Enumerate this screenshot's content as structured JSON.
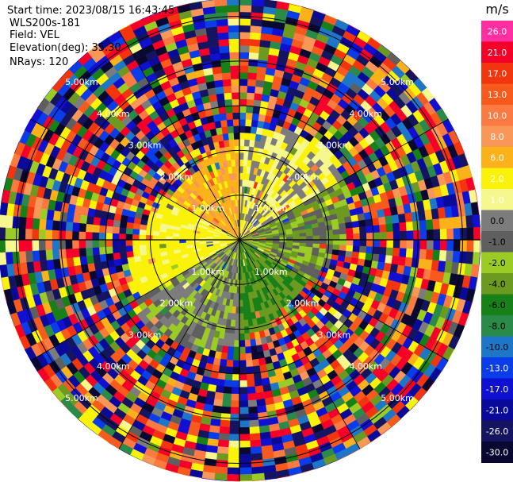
{
  "header": {
    "start_time": "Start time: 2023/08/15 16:43:45",
    "instrument": "WLS200s-181",
    "field": "Field: VEL",
    "elevation": "Elevation(deg): 35.30",
    "nrays": "NRays: 120"
  },
  "colorbar": {
    "unit": "m/s",
    "ticks": [
      "26.0",
      "21.0",
      "17.0",
      "13.0",
      "10.0",
      "8.0",
      "6.0",
      "2.0",
      "1.0",
      "0.0",
      "-1.0",
      "-2.0",
      "-4.0",
      "-6.0",
      "-8.0",
      "-10.0",
      "-13.0",
      "-17.0",
      "-21.0",
      "-26.0",
      "-30.0"
    ],
    "colors": [
      "#ff2fa2",
      "#f40028",
      "#f2350e",
      "#f75a1c",
      "#fb7a42",
      "#f89758",
      "#fbb21a",
      "#fbf20a",
      "#f6f78d",
      "#7c7c7c",
      "#5f5f5f",
      "#9bcc26",
      "#6c9a20",
      "#188018",
      "#2a8a4a",
      "#1d76c8",
      "#0a3de7",
      "#1010d2",
      "#0a0a9a",
      "#141460",
      "#080830"
    ]
  },
  "chart_data": {
    "type": "heatmap",
    "subtype": "ppi-polar",
    "field": "VEL",
    "units": "m/s",
    "nrays": 120,
    "range_rings_km": [
      1.0,
      2.0,
      3.0,
      4.0,
      5.0
    ],
    "range_ring_labels": [
      "1.00km",
      "2.00km",
      "3.00km",
      "4.00km",
      "5.00km"
    ],
    "max_range_km": 5.4,
    "vlim": [
      -30.0,
      26.0
    ],
    "spokes_deg": [
      0,
      30,
      60,
      90,
      120,
      150,
      180,
      210,
      240,
      270,
      300,
      330
    ],
    "inner_region_by_sector": [
      {
        "az": [
          0,
          60
        ],
        "value": 1.5
      },
      {
        "az": [
          60,
          120
        ],
        "value": -1.5
      },
      {
        "az": [
          120,
          180
        ],
        "value": -4.0
      },
      {
        "az": [
          180,
          240
        ],
        "value": -0.5
      },
      {
        "az": [
          240,
          300
        ],
        "value": 3.0
      },
      {
        "az": [
          300,
          360
        ],
        "value": 7.0
      }
    ]
  }
}
